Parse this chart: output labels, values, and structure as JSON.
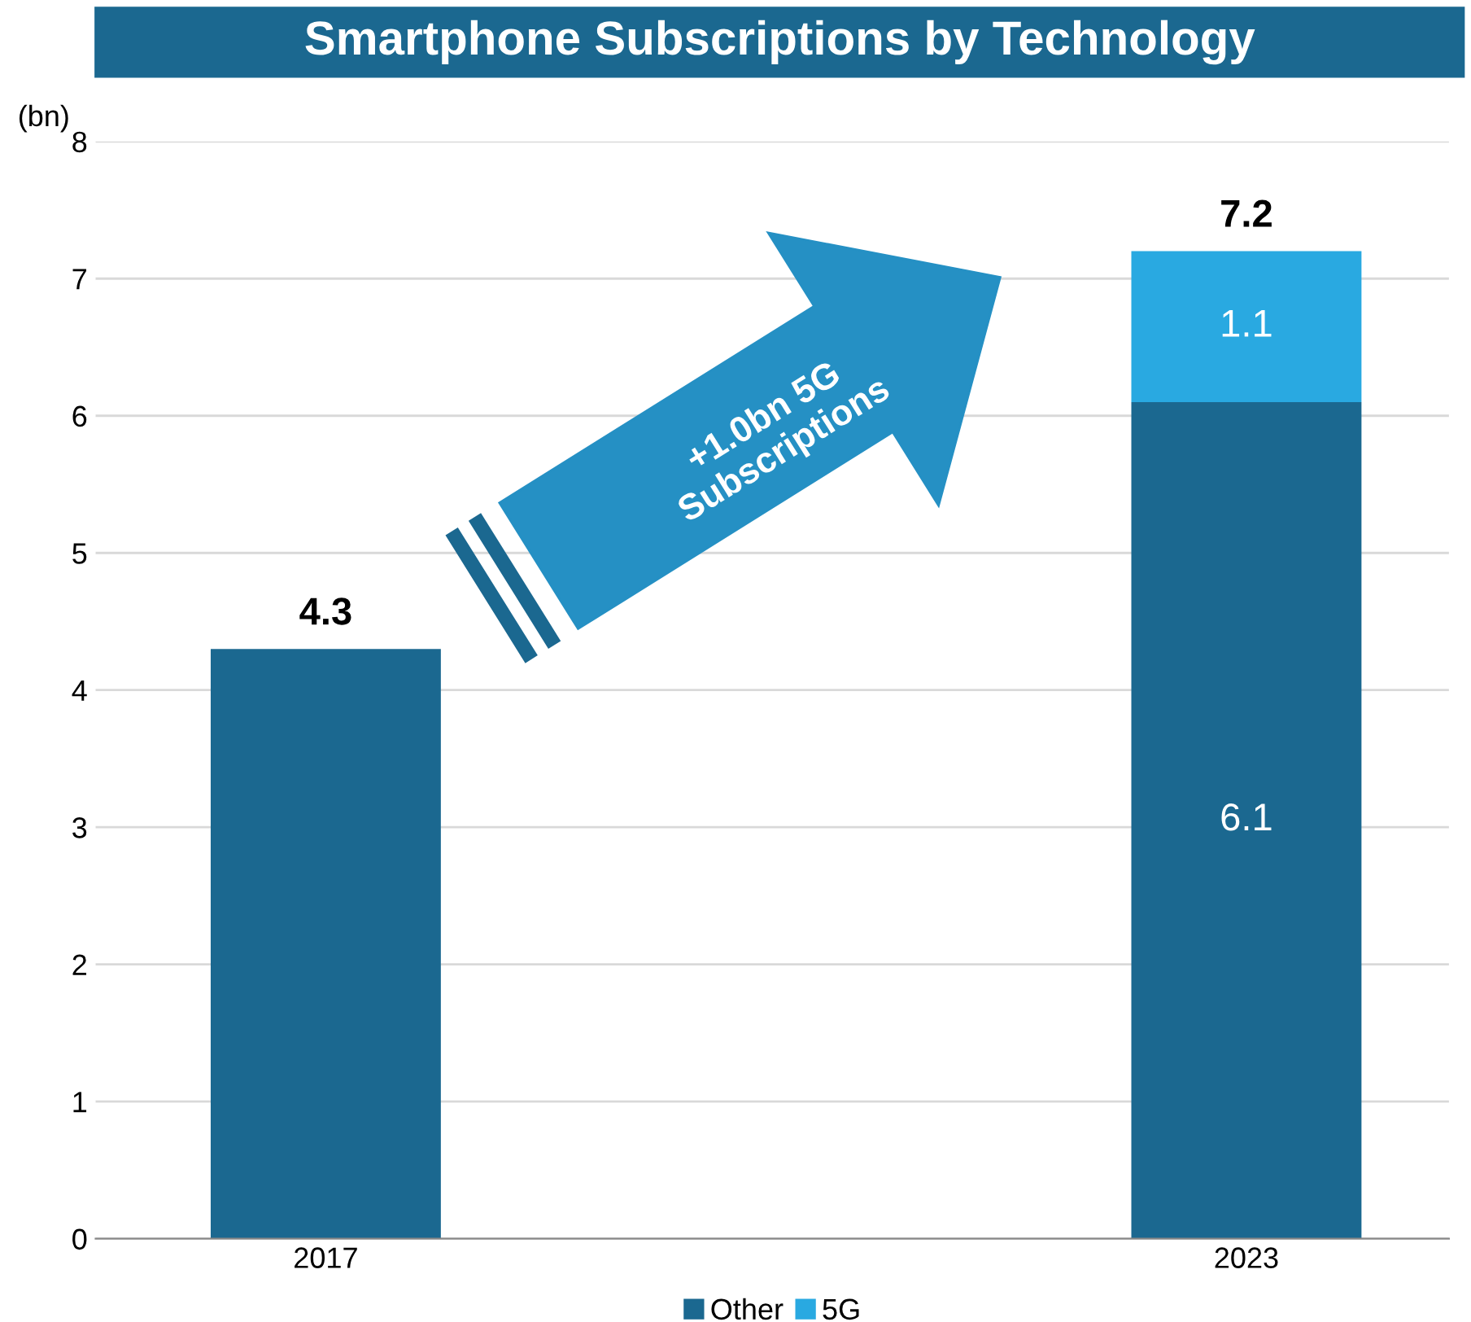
{
  "chart_data": {
    "type": "bar",
    "title": "Smartphone Subscriptions by Technology",
    "ylabel": "(bn)",
    "categories": [
      "2017",
      "2023"
    ],
    "stacked": true,
    "series": [
      {
        "name": "Other",
        "color": "#1b6890",
        "values": [
          4.3,
          6.1
        ],
        "value_labels": [
          null,
          "6.1"
        ]
      },
      {
        "name": "5G",
        "color": "#29a9e1",
        "values": [
          null,
          1.1
        ],
        "value_labels": [
          null,
          "1.1"
        ]
      }
    ],
    "totals": [
      "4.3",
      "7.2"
    ],
    "annotations": [
      "+1.0bn 5G\nSubscriptions"
    ],
    "ylim": [
      0,
      8
    ],
    "yticks": [
      0,
      1,
      2,
      3,
      4,
      5,
      6,
      7,
      8
    ],
    "grid": "y",
    "legend": "bottom"
  }
}
